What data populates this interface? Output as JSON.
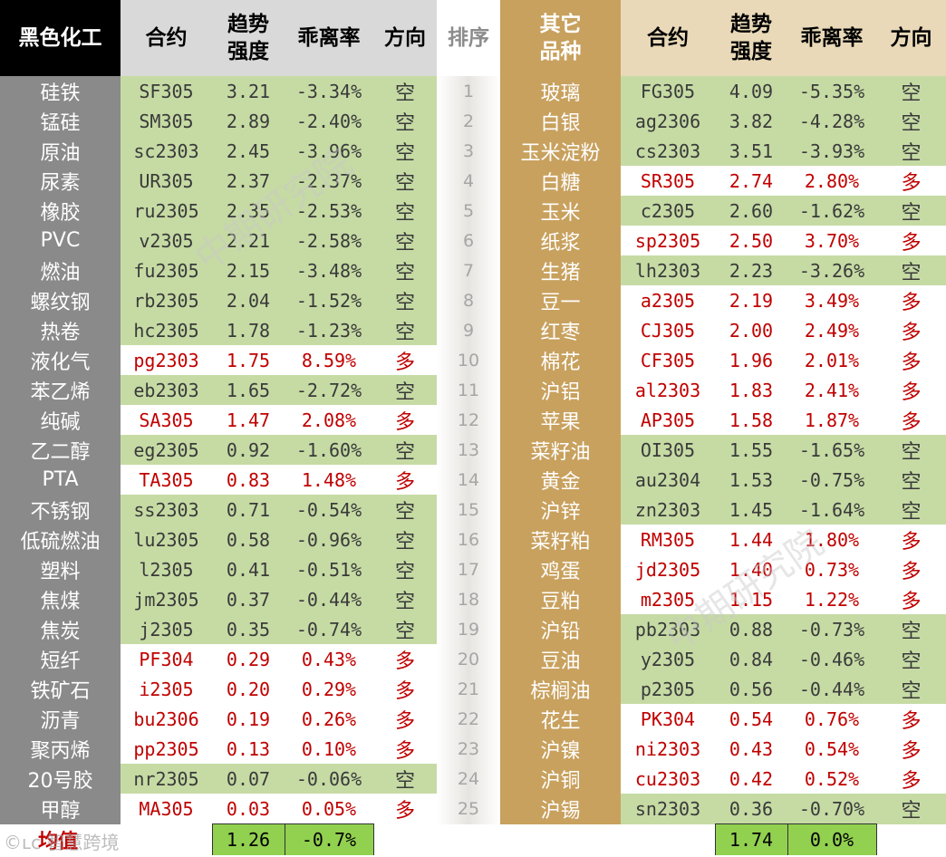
{
  "header": {
    "left_title": "黑色化工",
    "contract": "合约",
    "trend_line1": "趋势",
    "trend_line2": "强度",
    "deviation": "乖离率",
    "direction": "方向",
    "rank": "排序",
    "right_title_line1": "其它",
    "right_title_line2": "品种"
  },
  "left_rows": [
    {
      "name": "硅铁",
      "contract": "SF305",
      "trend": "3.21",
      "dev": "-3.34%",
      "dir": "空",
      "style": "g"
    },
    {
      "name": "锰硅",
      "contract": "SM305",
      "trend": "2.89",
      "dev": "-2.40%",
      "dir": "空",
      "style": "g"
    },
    {
      "name": "原油",
      "contract": "sc2303",
      "trend": "2.45",
      "dev": "-3.96%",
      "dir": "空",
      "style": "g"
    },
    {
      "name": "尿素",
      "contract": "UR305",
      "trend": "2.37",
      "dev": "-2.37%",
      "dir": "空",
      "style": "g"
    },
    {
      "name": "橡胶",
      "contract": "ru2305",
      "trend": "2.35",
      "dev": "-2.53%",
      "dir": "空",
      "style": "g"
    },
    {
      "name": "PVC",
      "contract": "v2305",
      "trend": "2.21",
      "dev": "-2.58%",
      "dir": "空",
      "style": "g"
    },
    {
      "name": "燃油",
      "contract": "fu2305",
      "trend": "2.15",
      "dev": "-3.48%",
      "dir": "空",
      "style": "g"
    },
    {
      "name": "螺纹钢",
      "contract": "rb2305",
      "trend": "2.04",
      "dev": "-1.52%",
      "dir": "空",
      "style": "g"
    },
    {
      "name": "热卷",
      "contract": "hc2305",
      "trend": "1.78",
      "dev": "-1.23%",
      "dir": "空",
      "style": "g"
    },
    {
      "name": "液化气",
      "contract": "pg2303",
      "trend": "1.75",
      "dev": "8.59%",
      "dir": "多",
      "style": "r"
    },
    {
      "name": "苯乙烯",
      "contract": "eb2303",
      "trend": "1.65",
      "dev": "-2.72%",
      "dir": "空",
      "style": "g"
    },
    {
      "name": "纯碱",
      "contract": "SA305",
      "trend": "1.47",
      "dev": "2.08%",
      "dir": "多",
      "style": "r"
    },
    {
      "name": "乙二醇",
      "contract": "eg2305",
      "trend": "0.92",
      "dev": "-1.60%",
      "dir": "空",
      "style": "g"
    },
    {
      "name": "PTA",
      "contract": "TA305",
      "trend": "0.83",
      "dev": "1.48%",
      "dir": "多",
      "style": "r"
    },
    {
      "name": "不锈钢",
      "contract": "ss2303",
      "trend": "0.71",
      "dev": "-0.54%",
      "dir": "空",
      "style": "g"
    },
    {
      "name": "低硫燃油",
      "contract": "lu2305",
      "trend": "0.58",
      "dev": "-0.96%",
      "dir": "空",
      "style": "g"
    },
    {
      "name": "塑料",
      "contract": "l2305",
      "trend": "0.41",
      "dev": "-0.51%",
      "dir": "空",
      "style": "g"
    },
    {
      "name": "焦煤",
      "contract": "jm2305",
      "trend": "0.37",
      "dev": "-0.44%",
      "dir": "空",
      "style": "g"
    },
    {
      "name": "焦炭",
      "contract": "j2305",
      "trend": "0.35",
      "dev": "-0.74%",
      "dir": "空",
      "style": "g"
    },
    {
      "name": "短纤",
      "contract": "PF304",
      "trend": "0.29",
      "dev": "0.43%",
      "dir": "多",
      "style": "r"
    },
    {
      "name": "铁矿石",
      "contract": "i2305",
      "trend": "0.20",
      "dev": "0.29%",
      "dir": "多",
      "style": "r"
    },
    {
      "name": "沥青",
      "contract": "bu2306",
      "trend": "0.19",
      "dev": "0.26%",
      "dir": "多",
      "style": "r"
    },
    {
      "name": "聚丙烯",
      "contract": "pp2305",
      "trend": "0.13",
      "dev": "0.10%",
      "dir": "多",
      "style": "r"
    },
    {
      "name": "20号胶",
      "contract": "nr2305",
      "trend": "0.07",
      "dev": "-0.06%",
      "dir": "空",
      "style": "g"
    },
    {
      "name": "甲醇",
      "contract": "MA305",
      "trend": "0.03",
      "dev": "0.05%",
      "dir": "多",
      "style": "r"
    }
  ],
  "ranks": [
    "1",
    "2",
    "3",
    "4",
    "5",
    "6",
    "7",
    "8",
    "9",
    "10",
    "11",
    "12",
    "13",
    "14",
    "15",
    "16",
    "17",
    "18",
    "19",
    "20",
    "21",
    "22",
    "23",
    "24",
    "25"
  ],
  "right_rows": [
    {
      "name": "玻璃",
      "contract": "FG305",
      "trend": "4.09",
      "dev": "-5.35%",
      "dir": "空",
      "style": "g"
    },
    {
      "name": "白银",
      "contract": "ag2306",
      "trend": "3.82",
      "dev": "-4.28%",
      "dir": "空",
      "style": "g"
    },
    {
      "name": "玉米淀粉",
      "contract": "cs2303",
      "trend": "3.51",
      "dev": "-3.93%",
      "dir": "空",
      "style": "g"
    },
    {
      "name": "白糖",
      "contract": "SR305",
      "trend": "2.74",
      "dev": "2.80%",
      "dir": "多",
      "style": "r"
    },
    {
      "name": "玉米",
      "contract": "c2305",
      "trend": "2.60",
      "dev": "-1.62%",
      "dir": "空",
      "style": "g"
    },
    {
      "name": "纸浆",
      "contract": "sp2305",
      "trend": "2.50",
      "dev": "3.70%",
      "dir": "多",
      "style": "r"
    },
    {
      "name": "生猪",
      "contract": "lh2303",
      "trend": "2.23",
      "dev": "-3.26%",
      "dir": "空",
      "style": "g"
    },
    {
      "name": "豆一",
      "contract": "a2305",
      "trend": "2.19",
      "dev": "3.49%",
      "dir": "多",
      "style": "r"
    },
    {
      "name": "红枣",
      "contract": "CJ305",
      "trend": "2.00",
      "dev": "2.49%",
      "dir": "多",
      "style": "r"
    },
    {
      "name": "棉花",
      "contract": "CF305",
      "trend": "1.96",
      "dev": "2.01%",
      "dir": "多",
      "style": "r"
    },
    {
      "name": "沪铝",
      "contract": "al2303",
      "trend": "1.83",
      "dev": "2.41%",
      "dir": "多",
      "style": "r"
    },
    {
      "name": "苹果",
      "contract": "AP305",
      "trend": "1.58",
      "dev": "1.87%",
      "dir": "多",
      "style": "r"
    },
    {
      "name": "菜籽油",
      "contract": "OI305",
      "trend": "1.55",
      "dev": "-1.65%",
      "dir": "空",
      "style": "g"
    },
    {
      "name": "黄金",
      "contract": "au2304",
      "trend": "1.53",
      "dev": "-0.75%",
      "dir": "空",
      "style": "g"
    },
    {
      "name": "沪锌",
      "contract": "zn2303",
      "trend": "1.45",
      "dev": "-1.64%",
      "dir": "空",
      "style": "g"
    },
    {
      "name": "菜籽粕",
      "contract": "RM305",
      "trend": "1.44",
      "dev": "1.80%",
      "dir": "多",
      "style": "r"
    },
    {
      "name": "鸡蛋",
      "contract": "jd2305",
      "trend": "1.40",
      "dev": "0.73%",
      "dir": "多",
      "style": "r"
    },
    {
      "name": "豆粕",
      "contract": "m2305",
      "trend": "1.15",
      "dev": "1.22%",
      "dir": "多",
      "style": "r"
    },
    {
      "name": "沪铅",
      "contract": "pb2303",
      "trend": "0.88",
      "dev": "-0.73%",
      "dir": "空",
      "style": "g"
    },
    {
      "name": "豆油",
      "contract": "y2305",
      "trend": "0.84",
      "dev": "-0.46%",
      "dir": "空",
      "style": "g"
    },
    {
      "name": "棕榈油",
      "contract": "p2305",
      "trend": "0.56",
      "dev": "-0.44%",
      "dir": "空",
      "style": "g"
    },
    {
      "name": "花生",
      "contract": "PK304",
      "trend": "0.54",
      "dev": "0.76%",
      "dir": "多",
      "style": "r"
    },
    {
      "name": "沪镍",
      "contract": "ni2303",
      "trend": "0.43",
      "dev": "0.54%",
      "dir": "多",
      "style": "r"
    },
    {
      "name": "沪铜",
      "contract": "cu2303",
      "trend": "0.42",
      "dev": "0.52%",
      "dir": "多",
      "style": "r"
    },
    {
      "name": "沪锡",
      "contract": "sn2303",
      "trend": "0.36",
      "dev": "-0.70%",
      "dir": "空",
      "style": "g"
    }
  ],
  "footer": {
    "avg_label": "均值",
    "left_avg_trend": "1.26",
    "left_avg_dev": "-0.7%",
    "right_avg_trend": "1.74",
    "right_avg_dev": "0.0%"
  },
  "watermark": "中期研究院",
  "logo_text": "©ʟc 智慧跨境"
}
